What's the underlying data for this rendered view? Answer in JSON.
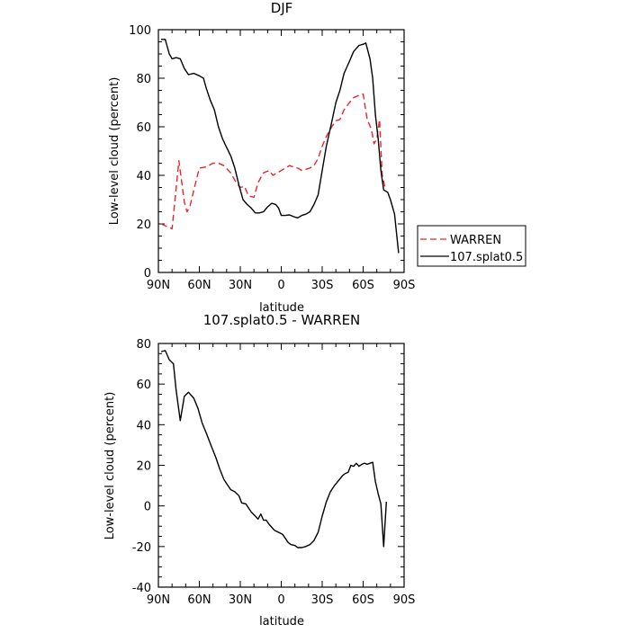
{
  "chart_data": [
    {
      "type": "line",
      "title": "DJF",
      "xlabel": "latitude",
      "ylabel": "Low-level cloud (percent)",
      "xlim": [
        90,
        -90
      ],
      "ylim": [
        0,
        100
      ],
      "x_ticks": [
        90,
        60,
        30,
        0,
        -30,
        -60,
        -90
      ],
      "x_tick_labels": [
        "90N",
        "60N",
        "30N",
        "0",
        "30S",
        "60S",
        "90S"
      ],
      "y_ticks": [
        0,
        20,
        40,
        60,
        80,
        100
      ],
      "y_tick_labels": [
        "0",
        "20",
        "40",
        "60",
        "80",
        "100"
      ],
      "legend_position": "outside-right",
      "series": [
        {
          "name": "WARREN",
          "color": "#e8262b",
          "dash": "dashed",
          "points": [
            [
              88,
              20
            ],
            [
              80,
              18
            ],
            [
              75,
              46
            ],
            [
              71,
              29
            ],
            [
              69,
              25
            ],
            [
              67,
              27
            ],
            [
              64,
              34
            ],
            [
              60,
              43
            ],
            [
              55,
              43.5
            ],
            [
              50,
              45
            ],
            [
              46,
              45
            ],
            [
              42,
              44
            ],
            [
              37,
              41
            ],
            [
              33,
              37
            ],
            [
              30,
              35
            ],
            [
              27,
              35.5
            ],
            [
              24,
              31.5
            ],
            [
              20,
              31
            ],
            [
              17,
              37
            ],
            [
              13,
              41
            ],
            [
              9,
              42
            ],
            [
              6,
              40
            ],
            [
              3,
              41
            ],
            [
              0,
              42
            ],
            [
              -3,
              43
            ],
            [
              -6,
              44
            ],
            [
              -9,
              43.5
            ],
            [
              -12,
              43
            ],
            [
              -15,
              42
            ],
            [
              -18,
              42.5
            ],
            [
              -21,
              43
            ],
            [
              -24,
              44
            ],
            [
              -27,
              47
            ],
            [
              -30,
              52
            ],
            [
              -33,
              56
            ],
            [
              -37,
              60
            ],
            [
              -40,
              62.5
            ],
            [
              -43,
              63
            ],
            [
              -46,
              67
            ],
            [
              -50,
              70
            ],
            [
              -53,
              72
            ],
            [
              -57,
              73
            ],
            [
              -60,
              73.5
            ],
            [
              -63,
              63
            ],
            [
              -66,
              59
            ],
            [
              -68,
              53
            ],
            [
              -70,
              55
            ],
            [
              -72,
              63
            ],
            [
              -74,
              40
            ],
            [
              -76,
              35
            ]
          ]
        },
        {
          "name": "107.splat0.5",
          "color": "#000000",
          "dash": "solid",
          "points": [
            [
              88,
              96
            ],
            [
              85,
              96
            ],
            [
              82,
              90
            ],
            [
              80,
              88
            ],
            [
              77,
              88.5
            ],
            [
              74,
              88
            ],
            [
              71,
              84
            ],
            [
              68,
              81.5
            ],
            [
              64,
              82
            ],
            [
              60,
              81
            ],
            [
              57,
              80
            ],
            [
              55,
              76
            ],
            [
              52,
              71
            ],
            [
              49,
              67
            ],
            [
              46,
              60
            ],
            [
              43,
              55
            ],
            [
              40,
              51.5
            ],
            [
              37,
              48
            ],
            [
              34,
              43
            ],
            [
              31,
              36
            ],
            [
              28,
              30
            ],
            [
              25,
              28
            ],
            [
              22,
              26.5
            ],
            [
              19,
              24.5
            ],
            [
              16,
              24.5
            ],
            [
              13,
              25
            ],
            [
              10,
              27
            ],
            [
              7,
              28.5
            ],
            [
              4,
              28
            ],
            [
              2,
              26.5
            ],
            [
              0,
              23.5
            ],
            [
              -3,
              23.5
            ],
            [
              -6,
              23.7
            ],
            [
              -9,
              23
            ],
            [
              -12,
              22.5
            ],
            [
              -15,
              23.5
            ],
            [
              -18,
              24
            ],
            [
              -21,
              25
            ],
            [
              -24,
              28
            ],
            [
              -27,
              32
            ],
            [
              -30,
              42
            ],
            [
              -33,
              52
            ],
            [
              -37,
              62
            ],
            [
              -40,
              70
            ],
            [
              -43,
              75
            ],
            [
              -46,
              82
            ],
            [
              -50,
              87
            ],
            [
              -53,
              91
            ],
            [
              -57,
              93.5
            ],
            [
              -60,
              94
            ],
            [
              -62,
              94.5
            ],
            [
              -65,
              88
            ],
            [
              -67,
              80
            ],
            [
              -69,
              65
            ],
            [
              -71,
              55
            ],
            [
              -73,
              42
            ],
            [
              -75,
              34
            ],
            [
              -78,
              33
            ],
            [
              -80,
              30
            ],
            [
              -83,
              24
            ],
            [
              -86,
              8
            ]
          ]
        }
      ]
    },
    {
      "type": "line",
      "title": "107.splat0.5 - WARREN",
      "xlabel": "latitude",
      "ylabel": "Low-level cloud (percent)",
      "xlim": [
        90,
        -90
      ],
      "ylim": [
        -40,
        80
      ],
      "x_ticks": [
        90,
        60,
        30,
        0,
        -30,
        -60,
        -90
      ],
      "x_tick_labels": [
        "90N",
        "60N",
        "30N",
        "0",
        "30S",
        "60S",
        "90S"
      ],
      "y_ticks": [
        -40,
        -20,
        0,
        20,
        40,
        60,
        80
      ],
      "y_tick_labels": [
        "-40",
        "-20",
        "0",
        "20",
        "40",
        "60",
        "80"
      ],
      "series": [
        {
          "color": "#000000",
          "dash": "solid",
          "points": [
            [
              88,
              76
            ],
            [
              85,
              76.5
            ],
            [
              82,
              72
            ],
            [
              79,
              70
            ],
            [
              77,
              57
            ],
            [
              74,
              42
            ],
            [
              71,
              54
            ],
            [
              68,
              56
            ],
            [
              64,
              53
            ],
            [
              61,
              48
            ],
            [
              58,
              41
            ],
            [
              55,
              36
            ],
            [
              51,
              29
            ],
            [
              48,
              24
            ],
            [
              45,
              18
            ],
            [
              42,
              13
            ],
            [
              39,
              10
            ],
            [
              37,
              8
            ],
            [
              34,
              7
            ],
            [
              31,
              5
            ],
            [
              29,
              1.5
            ],
            [
              26,
              1
            ],
            [
              24,
              -1
            ],
            [
              22,
              -3
            ],
            [
              19,
              -5
            ],
            [
              17,
              -6.5
            ],
            [
              15,
              -4
            ],
            [
              13,
              -7
            ],
            [
              11,
              -7
            ],
            [
              9,
              -9
            ],
            [
              7,
              -10.5
            ],
            [
              5,
              -12
            ],
            [
              2,
              -13
            ],
            [
              -1,
              -14
            ],
            [
              -3,
              -16
            ],
            [
              -5,
              -18
            ],
            [
              -7,
              -19
            ],
            [
              -10,
              -19.5
            ],
            [
              -12,
              -20.5
            ],
            [
              -15,
              -20.5
            ],
            [
              -18,
              -20
            ],
            [
              -21,
              -19
            ],
            [
              -24,
              -17
            ],
            [
              -27,
              -13
            ],
            [
              -30,
              -5
            ],
            [
              -33,
              2
            ],
            [
              -36,
              7
            ],
            [
              -39,
              10
            ],
            [
              -42,
              12.5
            ],
            [
              -45,
              15
            ],
            [
              -47,
              16
            ],
            [
              -49,
              16.5
            ],
            [
              -51,
              20
            ],
            [
              -53,
              19.5
            ],
            [
              -55,
              21
            ],
            [
              -57,
              19.5
            ],
            [
              -59,
              20.5
            ],
            [
              -61,
              21
            ],
            [
              -63,
              20.5
            ],
            [
              -65,
              21
            ],
            [
              -67,
              21.5
            ],
            [
              -69,
              12
            ],
            [
              -71,
              6
            ],
            [
              -73,
              1
            ],
            [
              -75,
              -20
            ],
            [
              -77,
              2
            ]
          ]
        }
      ]
    }
  ]
}
